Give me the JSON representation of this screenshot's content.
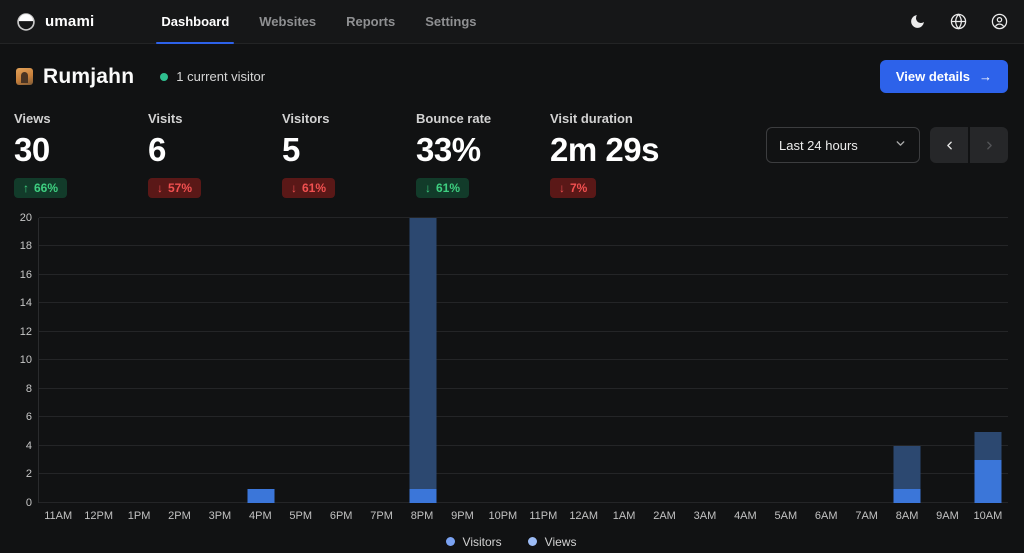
{
  "navbar": {
    "brand": "umami",
    "items": [
      {
        "label": "Dashboard",
        "active": true
      },
      {
        "label": "Websites",
        "active": false
      },
      {
        "label": "Reports",
        "active": false
      },
      {
        "label": "Settings",
        "active": false
      }
    ],
    "icons": [
      "moon-icon",
      "globe-icon",
      "profile-icon"
    ]
  },
  "site_header": {
    "title": "Rumjahn",
    "live_status": "1 current visitor",
    "view_details_label": "View details",
    "view_details_arrow": "→"
  },
  "metrics": [
    {
      "label": "Views",
      "value": "30",
      "arrow": "↑",
      "change": "66%",
      "positive": true
    },
    {
      "label": "Visits",
      "value": "6",
      "arrow": "↓",
      "change": "57%",
      "positive": false
    },
    {
      "label": "Visitors",
      "value": "5",
      "arrow": "↓",
      "change": "61%",
      "positive": false
    },
    {
      "label": "Bounce rate",
      "value": "33%",
      "arrow": "↓",
      "change": "61%",
      "positive": true
    },
    {
      "label": "Visit duration",
      "value": "2m 29s",
      "arrow": "↓",
      "change": "7%",
      "positive": false
    }
  ],
  "controls": {
    "date_range": "Last 24 hours"
  },
  "colors": {
    "accent": "#2d62ea",
    "bar_visitors": "#3b76d9",
    "bar_views": "#2c4870",
    "badge_positive_text": "#3ecf80",
    "badge_negative_text": "#f25050",
    "live_dot": "#2fbf8f"
  },
  "chart_data": {
    "type": "bar",
    "title": "",
    "xlabel": "",
    "ylabel": "",
    "x": [
      "11AM",
      "12PM",
      "1PM",
      "2PM",
      "3PM",
      "4PM",
      "5PM",
      "6PM",
      "7PM",
      "8PM",
      "9PM",
      "10PM",
      "11PM",
      "12AM",
      "1AM",
      "2AM",
      "3AM",
      "4AM",
      "5AM",
      "6AM",
      "7AM",
      "8AM",
      "9AM",
      "10AM"
    ],
    "series": [
      {
        "name": "Visitors",
        "values": [
          0,
          0,
          0,
          0,
          0,
          1,
          0,
          0,
          0,
          1,
          0,
          0,
          0,
          0,
          0,
          0,
          0,
          0,
          0,
          0,
          0,
          1,
          0,
          3
        ]
      },
      {
        "name": "Views",
        "values": [
          0,
          0,
          0,
          0,
          0,
          1,
          0,
          0,
          0,
          20,
          0,
          0,
          0,
          0,
          0,
          0,
          0,
          0,
          0,
          0,
          0,
          4,
          0,
          5
        ]
      }
    ],
    "ylim": [
      0,
      20
    ],
    "yticks": [
      0,
      2,
      4,
      6,
      8,
      10,
      12,
      14,
      16,
      18,
      20
    ],
    "grid": true,
    "legend_position": "bottom"
  }
}
